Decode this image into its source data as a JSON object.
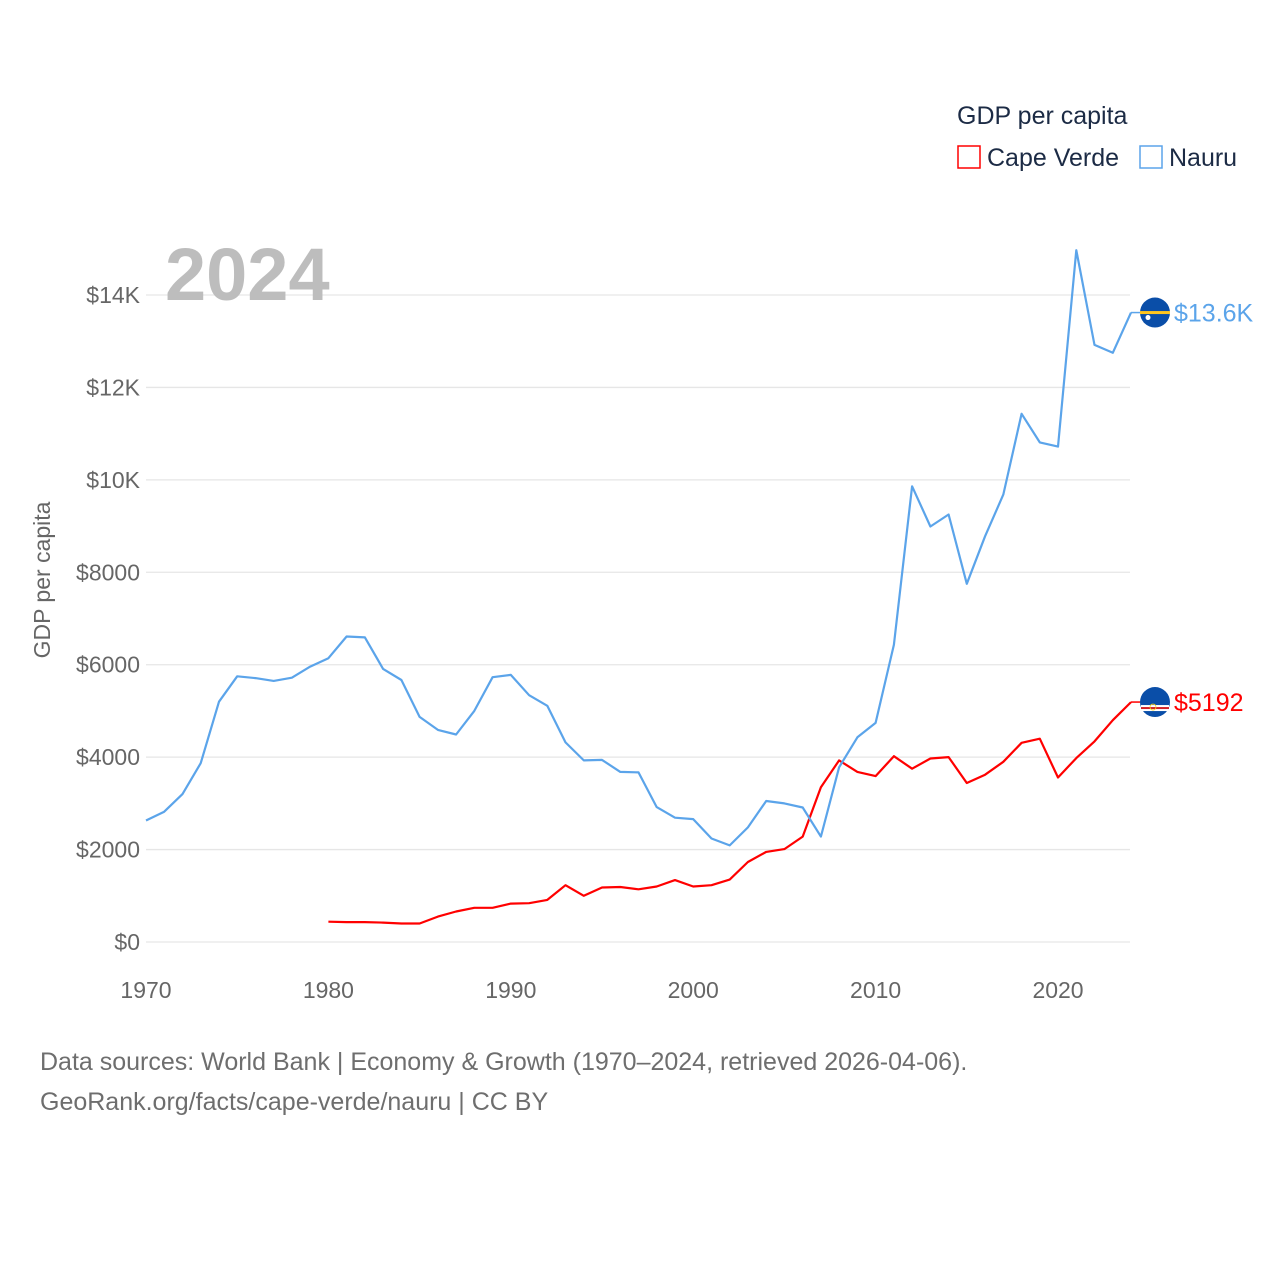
{
  "chart_data": {
    "type": "line",
    "title": "GDP per capita",
    "year_label": "2024",
    "ylabel": "GDP per capita",
    "xlabel": "",
    "xlim": [
      1970,
      2024
    ],
    "ylim": [
      0,
      14000
    ],
    "grid": true,
    "legend_placement": "top-right",
    "x_ticks": [
      1970,
      1980,
      1990,
      2000,
      2010,
      2020
    ],
    "x_tick_labels": [
      "1970",
      "1980",
      "1990",
      "2000",
      "2010",
      "2020"
    ],
    "y_ticks": [
      0,
      2000,
      4000,
      6000,
      8000,
      10000,
      12000,
      14000
    ],
    "y_tick_labels": [
      "$0",
      "$2000",
      "$4000",
      "$6000",
      "$8000",
      "$10K",
      "$12K",
      "$14K"
    ],
    "series": [
      {
        "name": "Cape Verde",
        "color": "#ff0000",
        "end_label": "$5192",
        "flag": "cape-verde-flag",
        "start_year": 1980,
        "values": [
          440,
          430,
          430,
          420,
          400,
          400,
          550,
          660,
          740,
          740,
          830,
          840,
          910,
          1230,
          1000,
          1180,
          1190,
          1140,
          1200,
          1340,
          1200,
          1230,
          1350,
          1730,
          1950,
          2010,
          2280,
          3350,
          3930,
          3680,
          3590,
          4020,
          3750,
          3970,
          4000,
          3440,
          3620,
          3900,
          4310,
          4400,
          3560,
          3980,
          4340,
          4800,
          5192
        ]
      },
      {
        "name": "Nauru",
        "color": "#5ba4ea",
        "end_label": "$13.6K",
        "flag": "nauru-flag",
        "start_year": 1970,
        "values": [
          2630,
          2820,
          3200,
          3870,
          5200,
          5750,
          5710,
          5650,
          5720,
          5960,
          6140,
          6610,
          6590,
          5910,
          5670,
          4870,
          4590,
          4490,
          5000,
          5730,
          5780,
          5340,
          5110,
          4320,
          3930,
          3940,
          3680,
          3670,
          2920,
          2690,
          2660,
          2240,
          2090,
          2480,
          3050,
          3000,
          2910,
          2280,
          3780,
          4430,
          4740,
          6430,
          9860,
          8990,
          9250,
          7750,
          8780,
          9680,
          11430,
          10810,
          10720,
          14970,
          12920,
          12750,
          13620
        ]
      }
    ]
  },
  "footer": {
    "line1": "Data sources: World Bank | Economy & Growth (1970–2024, retrieved 2026-04-06).",
    "line2": "GeoRank.org/facts/cape-verde/nauru | CC BY"
  }
}
